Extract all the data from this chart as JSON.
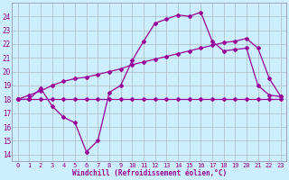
{
  "xlabel": "Windchill (Refroidissement éolien,°C)",
  "background_color": "#cceeff",
  "grid_color": "#aabbbb",
  "line_color": "#990099",
  "xlim": [
    -0.5,
    23.5
  ],
  "ylim": [
    13.5,
    25.0
  ],
  "xticks": [
    0,
    1,
    2,
    3,
    4,
    5,
    6,
    7,
    8,
    9,
    10,
    11,
    12,
    13,
    14,
    15,
    16,
    17,
    18,
    19,
    20,
    21,
    22,
    23
  ],
  "yticks": [
    14,
    15,
    16,
    17,
    18,
    19,
    20,
    21,
    22,
    23,
    24
  ],
  "line1_x": [
    0,
    1,
    2,
    3,
    4,
    5,
    6,
    7,
    8,
    9,
    10,
    11,
    12,
    13,
    14,
    15,
    16,
    17,
    18,
    19,
    20,
    21,
    22,
    23
  ],
  "line1_y": [
    18.0,
    18.0,
    18.0,
    18.0,
    18.0,
    18.0,
    18.0,
    18.0,
    18.0,
    18.0,
    18.0,
    18.0,
    18.0,
    18.0,
    18.0,
    18.0,
    18.0,
    18.0,
    18.0,
    18.0,
    18.0,
    18.0,
    18.0,
    18.0
  ],
  "line2_x": [
    0,
    1,
    2,
    3,
    4,
    5,
    6,
    7,
    8,
    9,
    10,
    11,
    12,
    13,
    14,
    15,
    16,
    17,
    18,
    19,
    20,
    21,
    22,
    23
  ],
  "line2_y": [
    18.0,
    18.3,
    18.6,
    19.0,
    19.3,
    19.5,
    19.6,
    19.8,
    20.0,
    20.2,
    20.5,
    20.7,
    20.9,
    21.1,
    21.3,
    21.5,
    21.7,
    21.9,
    22.1,
    22.2,
    22.4,
    21.7,
    19.5,
    18.2
  ],
  "line3_x": [
    0,
    1,
    2,
    3,
    4,
    5,
    6,
    7,
    8,
    9,
    10,
    11,
    12,
    13,
    14,
    15,
    16,
    17,
    18,
    19,
    20,
    21,
    22,
    23
  ],
  "line3_y": [
    18.0,
    18.0,
    18.8,
    17.5,
    16.7,
    16.3,
    14.2,
    15.0,
    18.5,
    19.0,
    20.8,
    22.2,
    23.5,
    23.8,
    24.1,
    24.0,
    24.3,
    22.2,
    21.5,
    21.6,
    21.7,
    19.0,
    18.3,
    18.2
  ]
}
